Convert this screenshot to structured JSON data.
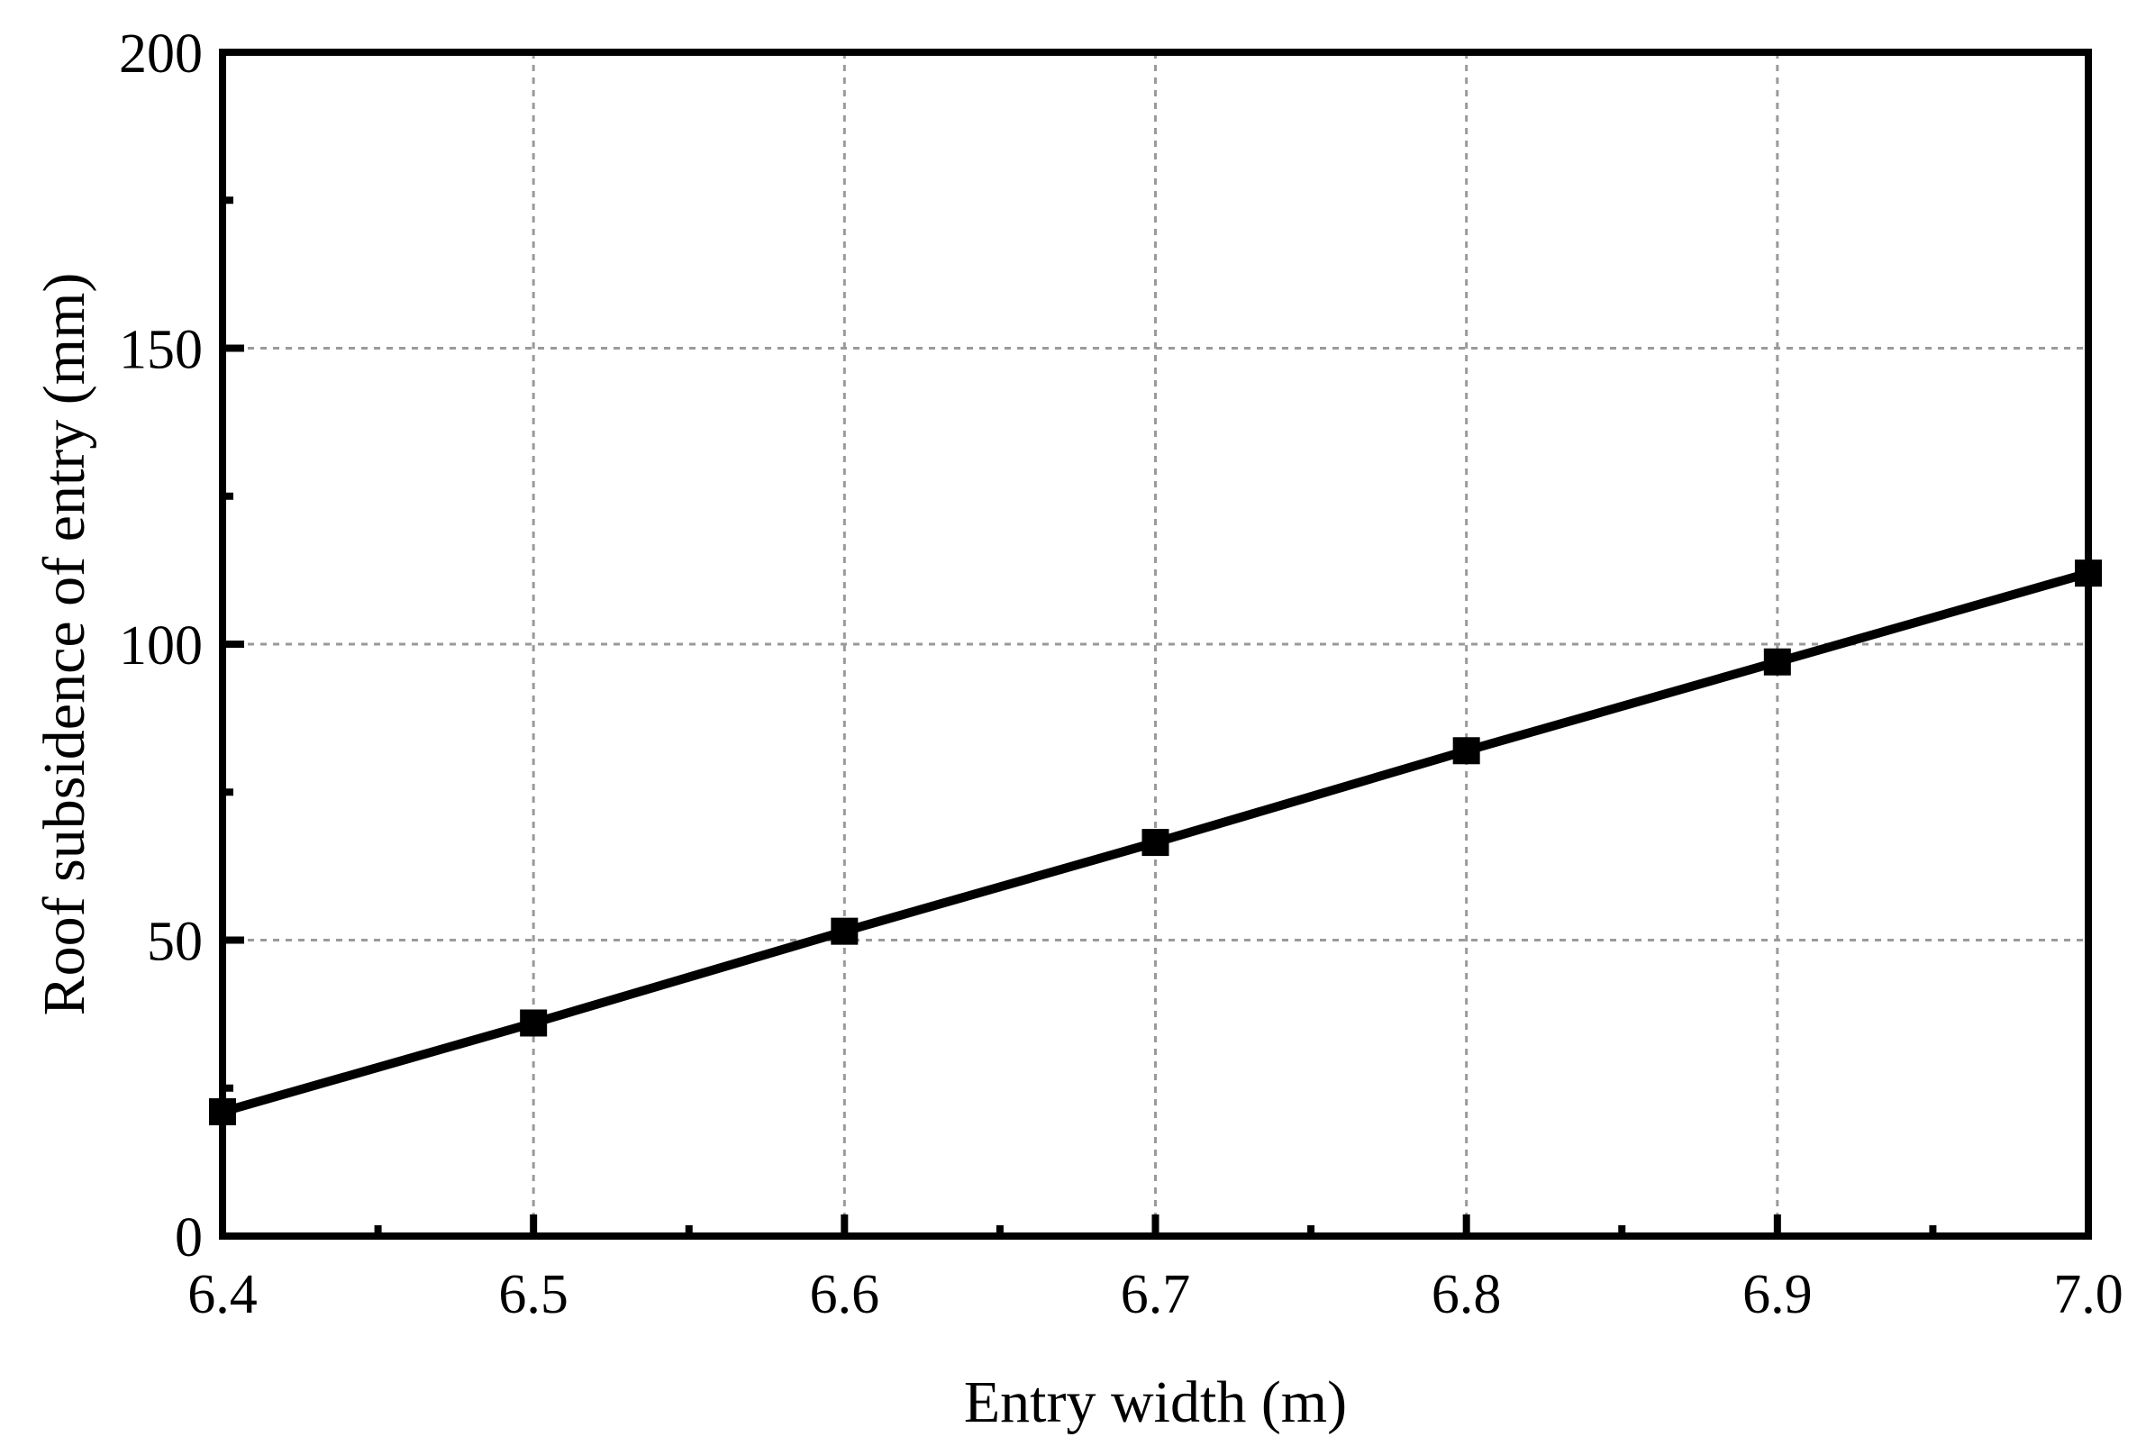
{
  "chart_data": {
    "type": "line",
    "xlabel": "Entry width (m)",
    "ylabel": "Roof subsidence of entry (mm)",
    "xlim": [
      6.4,
      7.0
    ],
    "ylim": [
      0,
      200
    ],
    "x_ticks": [
      "6.4",
      "6.5",
      "6.6",
      "6.7",
      "6.8",
      "6.9",
      "7.0"
    ],
    "y_ticks": [
      "0",
      "50",
      "100",
      "150",
      "200"
    ],
    "grid": true,
    "marker": "square",
    "series": [
      {
        "x": [
          6.4,
          6.5,
          6.6,
          6.7,
          6.8,
          6.9,
          7.0
        ],
        "y": [
          21,
          36,
          51.5,
          66.5,
          82,
          97,
          112
        ]
      }
    ]
  }
}
